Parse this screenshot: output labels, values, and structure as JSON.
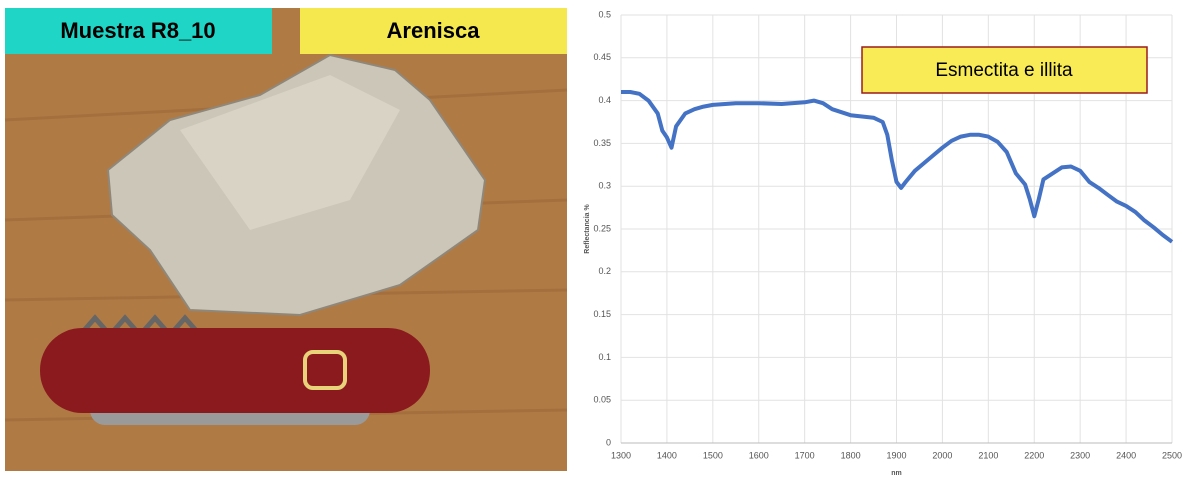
{
  "labels": {
    "sample": "Muestra R8_10",
    "rock": "Arenisca"
  },
  "chart_data": {
    "type": "line",
    "annotation": "Esmectita e illita",
    "x_label": "nm",
    "y_label": "Reflectancia %",
    "color": "#4472c4",
    "grid": true,
    "xlim": [
      1300,
      2500
    ],
    "ylim": [
      0,
      0.5
    ],
    "xticks": [
      1300,
      1400,
      1500,
      1600,
      1700,
      1800,
      1900,
      2000,
      2100,
      2200,
      2300,
      2400,
      2500
    ],
    "yticks": [
      0,
      0.05,
      0.1,
      0.15,
      0.2,
      0.25,
      0.3,
      0.35,
      0.4,
      0.45,
      0.5
    ],
    "x": [
      1300,
      1320,
      1340,
      1360,
      1380,
      1390,
      1400,
      1410,
      1420,
      1440,
      1460,
      1480,
      1500,
      1550,
      1600,
      1650,
      1700,
      1720,
      1740,
      1760,
      1800,
      1850,
      1870,
      1880,
      1890,
      1900,
      1910,
      1920,
      1940,
      1960,
      1980,
      2000,
      2020,
      2040,
      2060,
      2080,
      2100,
      2120,
      2140,
      2160,
      2180,
      2190,
      2200,
      2210,
      2220,
      2240,
      2260,
      2280,
      2300,
      2320,
      2340,
      2360,
      2380,
      2400,
      2420,
      2440,
      2460,
      2480,
      2500
    ],
    "values": [
      0.41,
      0.41,
      0.408,
      0.4,
      0.385,
      0.365,
      0.357,
      0.345,
      0.37,
      0.385,
      0.39,
      0.393,
      0.395,
      0.397,
      0.397,
      0.396,
      0.398,
      0.4,
      0.397,
      0.39,
      0.383,
      0.38,
      0.375,
      0.36,
      0.33,
      0.305,
      0.298,
      0.305,
      0.318,
      0.327,
      0.336,
      0.345,
      0.353,
      0.358,
      0.36,
      0.36,
      0.358,
      0.352,
      0.34,
      0.315,
      0.302,
      0.285,
      0.265,
      0.285,
      0.308,
      0.315,
      0.322,
      0.323,
      0.318,
      0.305,
      0.298,
      0.29,
      0.282,
      0.277,
      0.27,
      0.26,
      0.252,
      0.243,
      0.235
    ]
  }
}
